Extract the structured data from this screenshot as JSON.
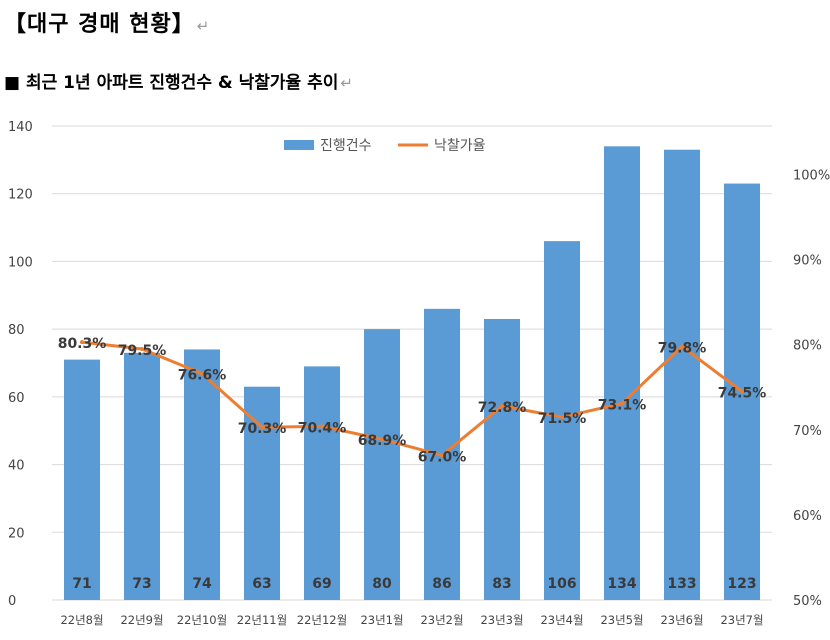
{
  "page": {
    "title": "【대구 경매 현황】",
    "subtitle": "■ 최근 1년 아파트 진행건수 & 낙찰가율 추이",
    "paragraph_mark": "↵"
  },
  "chart_data": {
    "type": "bar+line",
    "categories": [
      "22년8월",
      "22년9월",
      "22년10월",
      "22년11월",
      "22년12월",
      "23년1월",
      "23년2월",
      "23년3월",
      "23년4월",
      "23년5월",
      "23년6월",
      "23년7월"
    ],
    "series": [
      {
        "name": "진행건수",
        "type": "bar",
        "axis": "left",
        "color": "#5b9bd5",
        "values": [
          71,
          73,
          74,
          63,
          69,
          80,
          86,
          83,
          106,
          134,
          133,
          123
        ],
        "labels": [
          "71",
          "73",
          "74",
          "63",
          "69",
          "80",
          "86",
          "83",
          "106",
          "134",
          "133",
          "123"
        ]
      },
      {
        "name": "낙찰가율",
        "type": "line",
        "axis": "right",
        "color": "#ed7d31",
        "values": [
          80.3,
          79.5,
          76.6,
          70.3,
          70.4,
          68.9,
          67.0,
          72.8,
          71.5,
          73.1,
          79.8,
          74.5
        ],
        "labels": [
          "80.3%",
          "79.5%",
          "76.6%",
          "70.3%",
          "70.4%",
          "68.9%",
          "67.0%",
          "72.8%",
          "71.5%",
          "73.1%",
          "79.8%",
          "74.5%"
        ]
      }
    ],
    "left_axis": {
      "ylim": [
        0,
        140
      ],
      "ticks": [
        "0",
        "20",
        "40",
        "60",
        "80",
        "100",
        "120",
        "140"
      ],
      "tick_values": [
        0,
        20,
        40,
        60,
        80,
        100,
        120,
        140
      ]
    },
    "right_axis": {
      "ylim": [
        50,
        105.7
      ],
      "ticks": [
        "50%",
        "60%",
        "70%",
        "80%",
        "90%",
        "100%"
      ],
      "tick_values": [
        50,
        60,
        70,
        80,
        90,
        100
      ]
    },
    "grid": true,
    "legend": {
      "position": "top-center",
      "items": [
        "진행건수",
        "낙찰가율"
      ]
    }
  }
}
